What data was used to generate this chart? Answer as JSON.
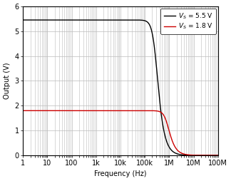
{
  "title": "",
  "xlabel": "Frequency (Hz)",
  "ylabel": "Output (V)",
  "xlim": [
    1,
    100000000.0
  ],
  "ylim": [
    0,
    6
  ],
  "yticks": [
    0,
    1,
    2,
    3,
    4,
    5,
    6
  ],
  "xtick_labels": [
    "1",
    "10",
    "100",
    "1k",
    "10k",
    "100k",
    "1M",
    "10M",
    "100M"
  ],
  "xtick_values": [
    1,
    10,
    100,
    1000,
    10000,
    100000,
    1000000,
    10000000,
    100000000
  ],
  "line1_color": "#000000",
  "line2_color": "#cc0000",
  "line1_label": "$V_S$ = 5.5 V",
  "line2_label": "$V_S$ = 1.8 V",
  "line1_flat": 5.45,
  "line2_flat": 1.8,
  "line1_fc": 280000,
  "line2_fc": 820000,
  "line1_order": 2.2,
  "line2_order": 2.2,
  "background_color": "#ffffff",
  "grid_color": "#bbbbbb",
  "font_size": 7,
  "legend_font_size": 6.5,
  "figure_width": 3.24,
  "figure_height": 2.54,
  "dpi": 100
}
